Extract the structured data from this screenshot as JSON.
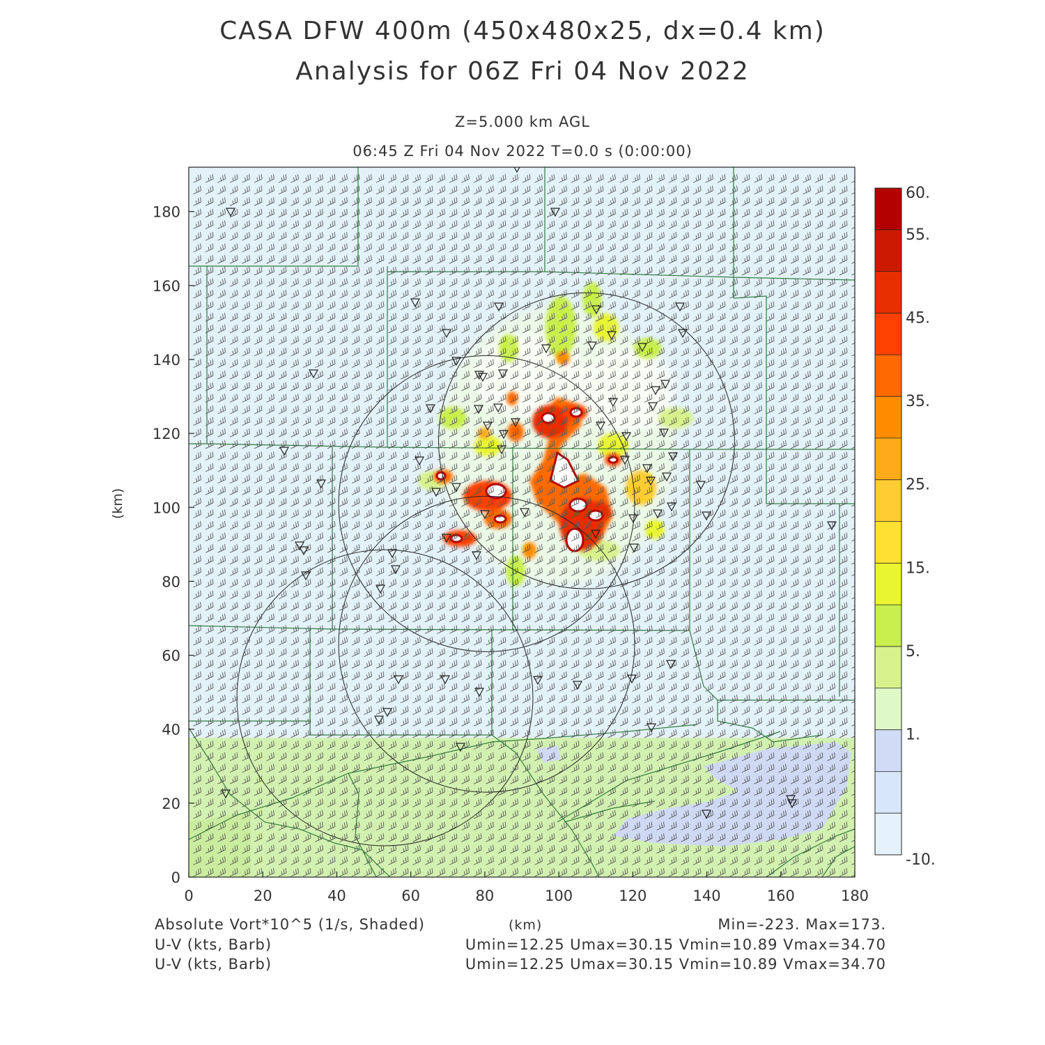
{
  "title": {
    "line1": "CASA DFW 400m (450x480x25, dx=0.4 km)",
    "line2": "Analysis for 06Z Fri 04 Nov 2022"
  },
  "subtitle": {
    "level": "Z=5.000 km AGL",
    "time": "06:45 Z Fri 04 Nov 2022    T=0.0 s (0:00:00)"
  },
  "axes": {
    "x_unit": "(km)",
    "y_unit": "(km)",
    "x_ticks": [
      "0",
      "20",
      "40",
      "60",
      "80",
      "100",
      "120",
      "140",
      "160",
      "180"
    ],
    "y_ticks": [
      "0",
      "20",
      "40",
      "60",
      "80",
      "100",
      "120",
      "140",
      "160",
      "180"
    ],
    "x_range": [
      0,
      180
    ],
    "y_range": [
      0,
      192
    ]
  },
  "colorbar": {
    "labels": [
      "60.",
      "55.",
      "45.",
      "35.",
      "25.",
      "15.",
      "5.",
      "1.",
      "-10."
    ],
    "colors": [
      "#b30000",
      "#cc1a00",
      "#e62e00",
      "#ff4000",
      "#ff6a00",
      "#ff8c00",
      "#ffaa1a",
      "#ffcc33",
      "#ffe033",
      "#e8f530",
      "#c8ef4e",
      "#d7f28c",
      "#dff8c8",
      "#d0dcf5",
      "#d7e6f8",
      "#e6f2fb"
    ]
  },
  "footer": {
    "field": "Absolute Vort*10^5 (1/s, Shaded)",
    "x_unit": "(km)",
    "minmax": "Min=-223. Max=173.",
    "barb1_label": "U-V (kts, Barb)",
    "barb1_stats": "Umin=12.25 Umax=30.15 Vmin=10.89 Vmax=34.70",
    "barb2_label": "U-V (kts, Barb)",
    "barb2_stats": "Umin=12.25 Umax=30.15 Vmin=10.89 Vmax=34.70"
  },
  "colors": {
    "background_field": "#e3f1f9",
    "south_band": "#d2f0b0",
    "blue_patch": "#cfd9f4",
    "county_lines": "#2e7d3c",
    "range_rings": "#222222",
    "barbs": "#555555"
  },
  "radar_rings_km": [
    {
      "cx": 107.5,
      "cy": 118,
      "r": 40
    },
    {
      "cx": 80.5,
      "cy": 101,
      "r": 40
    },
    {
      "cx": 80.5,
      "cy": 63,
      "r": 40
    },
    {
      "cx": 53,
      "cy": 48.5,
      "r": 40
    }
  ]
}
